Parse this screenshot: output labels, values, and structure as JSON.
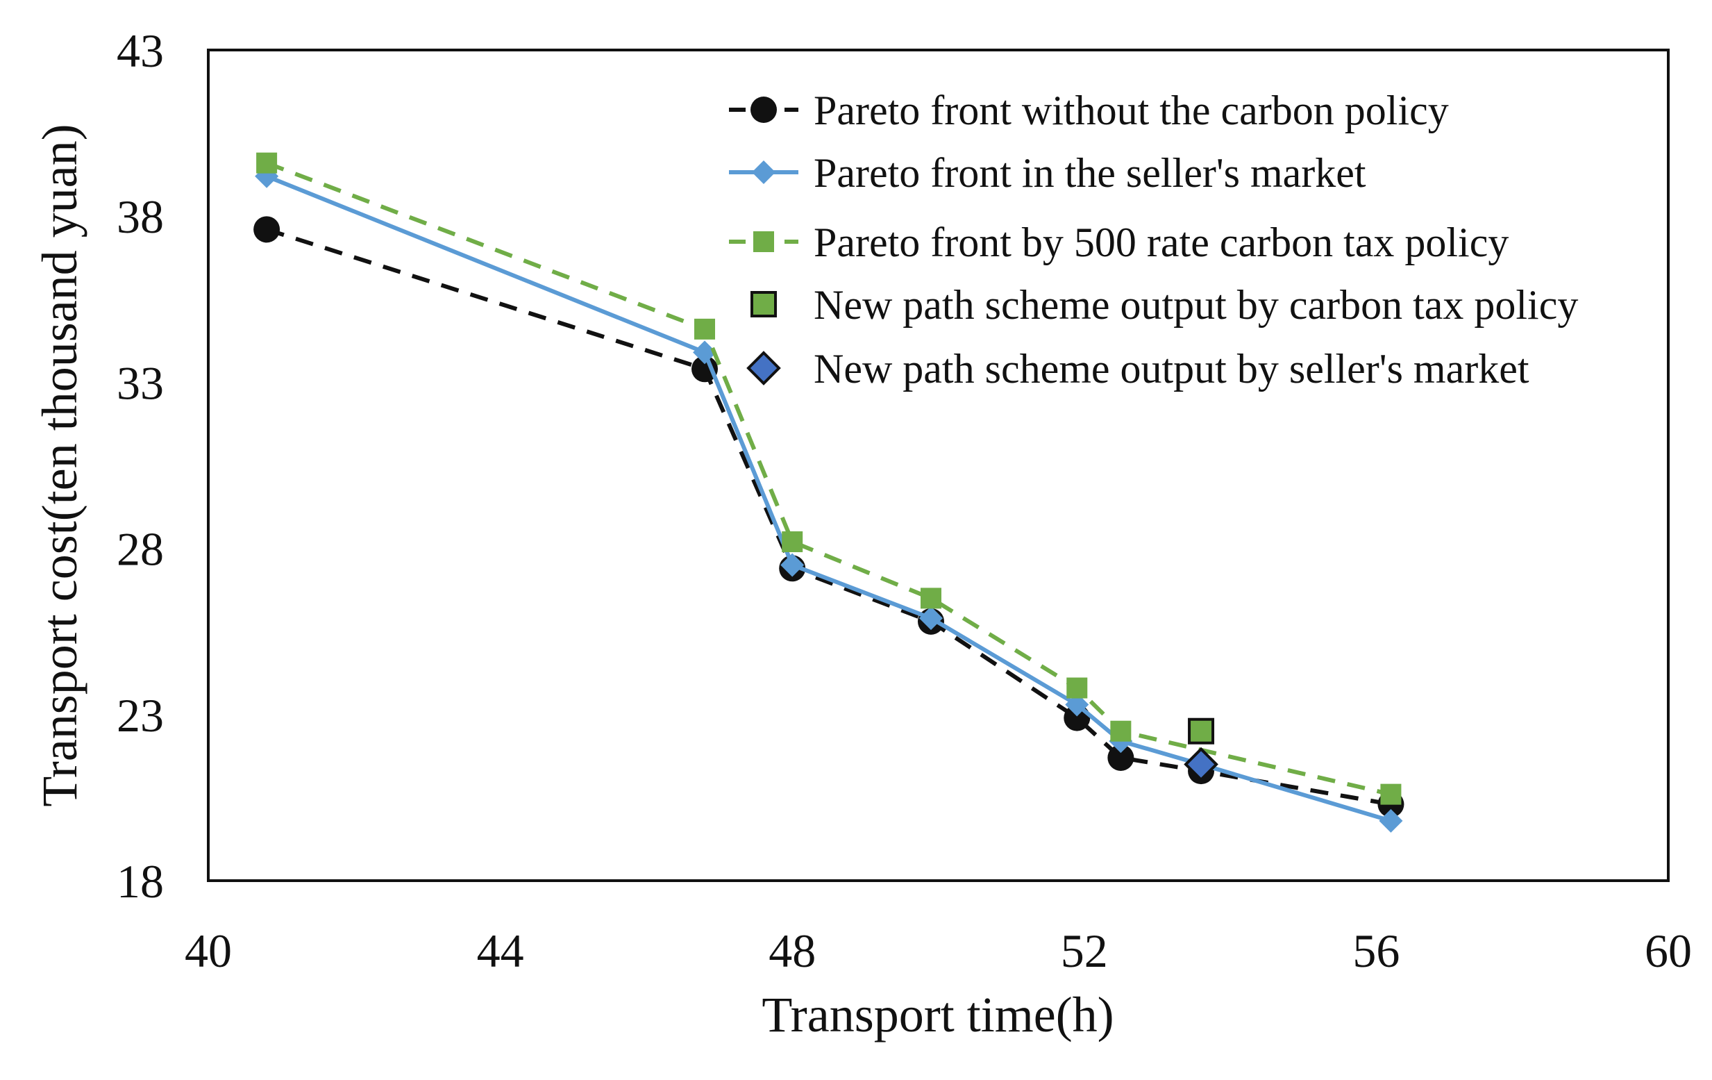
{
  "chart_data": {
    "type": "line",
    "title": "",
    "xlabel": "Transport time(h)",
    "ylabel": "Transport cost(ten thousand yuan)",
    "xlim": [
      40,
      60
    ],
    "ylim": [
      18,
      43
    ],
    "xticks": [
      40,
      44,
      48,
      52,
      56,
      60
    ],
    "yticks": [
      18,
      23,
      28,
      33,
      38,
      43
    ],
    "grid": false,
    "legend_position": "top-right",
    "series": [
      {
        "name": "Pareto front without the carbon policy",
        "style": "dashed",
        "marker": "circle",
        "color": "#111111",
        "points": [
          [
            40.8,
            37.6
          ],
          [
            46.8,
            33.4
          ],
          [
            48.0,
            27.4
          ],
          [
            49.9,
            25.8
          ],
          [
            51.9,
            22.9
          ],
          [
            52.5,
            21.7
          ],
          [
            53.6,
            21.3
          ],
          [
            56.2,
            20.3
          ]
        ]
      },
      {
        "name": "Pareto front in the seller's market",
        "style": "solid",
        "marker": "diamond",
        "color": "#5b9bd5",
        "points": [
          [
            40.8,
            39.2
          ],
          [
            46.8,
            33.9
          ],
          [
            48.0,
            27.5
          ],
          [
            49.9,
            25.9
          ],
          [
            51.9,
            23.3
          ],
          [
            52.5,
            22.2
          ],
          [
            53.6,
            21.5
          ],
          [
            56.2,
            19.8
          ]
        ]
      },
      {
        "name": "Pareto front by 500 rate carbon tax policy",
        "style": "dashed",
        "marker": "square",
        "color": "#70ad47",
        "points": [
          [
            40.8,
            39.6
          ],
          [
            46.8,
            34.6
          ],
          [
            48.0,
            28.2
          ],
          [
            49.9,
            26.5
          ],
          [
            51.9,
            23.8
          ],
          [
            52.5,
            22.5
          ],
          [
            56.2,
            20.6
          ]
        ]
      },
      {
        "name": "New path scheme output by carbon tax policy",
        "style": "none",
        "marker": "square-outlined",
        "color": "#70ad47",
        "points": [
          [
            53.6,
            22.5
          ]
        ]
      },
      {
        "name": "New path scheme output by seller's market",
        "style": "none",
        "marker": "diamond-outlined",
        "color": "#4472c4",
        "points": [
          [
            53.6,
            21.5
          ]
        ]
      }
    ]
  }
}
